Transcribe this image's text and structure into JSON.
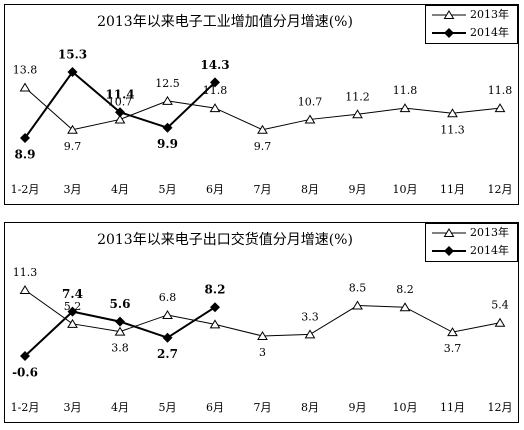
{
  "chart_data": [
    {
      "type": "line",
      "title": "2013年以来电子工业增加值分月增速(%)",
      "categories": [
        "1-2月",
        "3月",
        "4月",
        "5月",
        "6月",
        "7月",
        "8月",
        "9月",
        "10月",
        "11月",
        "12月"
      ],
      "series": [
        {
          "name": "2013年",
          "color": "#000000",
          "values": [
            13.8,
            9.7,
            10.7,
            12.5,
            11.8,
            9.7,
            10.7,
            11.2,
            11.8,
            11.3,
            11.8
          ]
        },
        {
          "name": "2014年",
          "color": "#000000",
          "values": [
            8.9,
            15.3,
            11.4,
            9.9,
            14.3,
            null,
            null,
            null,
            null,
            null,
            null
          ]
        }
      ]
    },
    {
      "type": "line",
      "title": "2013年以来电子出口交货值分月增速(%)",
      "categories": [
        "1-2月",
        "3月",
        "4月",
        "5月",
        "6月",
        "7月",
        "8月",
        "9月",
        "10月",
        "11月",
        "12月"
      ],
      "series": [
        {
          "name": "2013年",
          "color": "#000000",
          "values": [
            11.3,
            5.2,
            3.8,
            6.8,
            5.1,
            3,
            3.3,
            8.5,
            8.2,
            3.7,
            5.4
          ],
          "value_labels": [
            "11.3",
            "5.2",
            "3.8",
            "6.8",
            null,
            "3",
            "3.3",
            "8.5",
            "8.2",
            "3.7",
            "5.4"
          ]
        },
        {
          "name": "2014年",
          "color": "#000000",
          "values": [
            -0.6,
            7.4,
            5.6,
            2.7,
            8.2,
            null,
            null,
            null,
            null,
            null,
            null
          ]
        }
      ]
    }
  ]
}
